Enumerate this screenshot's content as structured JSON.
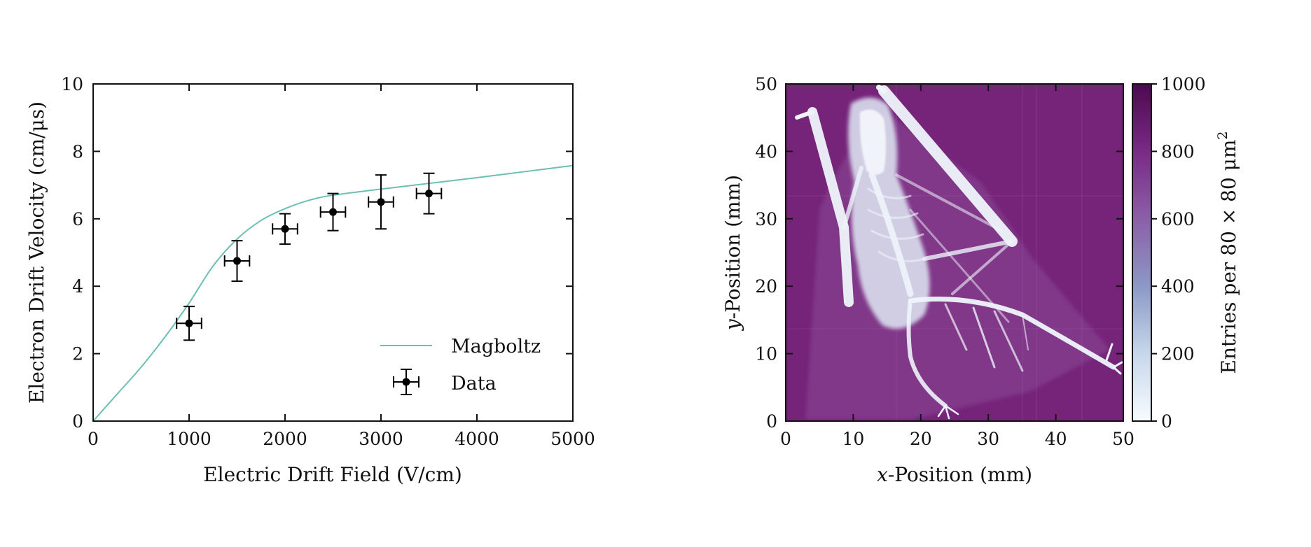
{
  "chart_data": [
    {
      "type": "line",
      "xlabel": "Electric Drift Field (V/cm)",
      "ylabel": "Electron Drift Velocity (cm/μs)",
      "xlim": [
        0,
        5000
      ],
      "ylim": [
        0,
        10
      ],
      "xticks": [
        0,
        1000,
        2000,
        3000,
        4000,
        5000
      ],
      "yticks": [
        0,
        2,
        4,
        6,
        8,
        10
      ],
      "legend_position": "lower-right",
      "series": [
        {
          "name": "Magboltz",
          "kind": "line",
          "color": "#6dbfb4",
          "x": [
            0,
            250,
            500,
            750,
            1000,
            1250,
            1500,
            1750,
            2000,
            2250,
            2500,
            3000,
            3500,
            4000,
            4500,
            5000
          ],
          "y": [
            0,
            0.8,
            1.6,
            2.5,
            3.5,
            4.6,
            5.4,
            5.95,
            6.3,
            6.55,
            6.7,
            6.88,
            7.05,
            7.22,
            7.4,
            7.58
          ]
        },
        {
          "name": "Data",
          "kind": "errorbar",
          "color": "#000000",
          "x": [
            1000,
            1500,
            2000,
            2500,
            3000,
            3500
          ],
          "y": [
            2.9,
            4.75,
            5.7,
            6.2,
            6.5,
            6.75
          ],
          "xerr": [
            130,
            130,
            130,
            130,
            130,
            130
          ],
          "yerr_low": [
            0.5,
            0.6,
            0.45,
            0.55,
            0.8,
            0.6
          ],
          "yerr_high": [
            0.5,
            0.6,
            0.45,
            0.55,
            0.8,
            0.6
          ]
        }
      ]
    },
    {
      "type": "heatmap",
      "xlabel_italic": "x",
      "xlabel_rest": "-Position (mm)",
      "ylabel_italic": "y",
      "ylabel_rest": "-Position (mm)",
      "xlim": [
        0,
        50
      ],
      "ylim": [
        0,
        50
      ],
      "xticks": [
        0,
        10,
        20,
        30,
        40,
        50
      ],
      "yticks": [
        0,
        10,
        20,
        30,
        40,
        50
      ],
      "colorbar": {
        "label": "Entries per 80 × 80 μm",
        "label_superscript": "2",
        "range": [
          0,
          1000
        ],
        "ticks": [
          0,
          200,
          400,
          600,
          800,
          1000
        ],
        "colors": [
          "#f7fbff",
          "#c7d7ea",
          "#8c98c6",
          "#8b5fa8",
          "#7a2a86",
          "#4d0a4f"
        ]
      },
      "background_color": "#7e2a82",
      "subject": "x-ray image of a bat"
    }
  ]
}
